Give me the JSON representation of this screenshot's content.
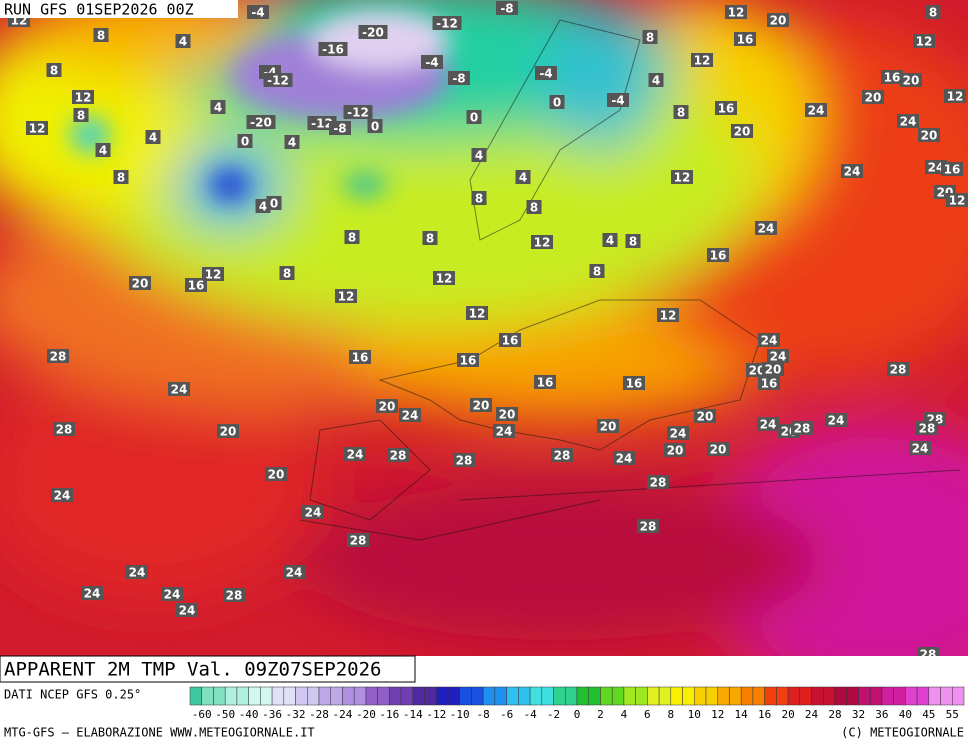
{
  "header": {
    "run": "RUN GFS 01SEP2026 00Z"
  },
  "map": {
    "title": "APPARENT 2M TMP Val. 09Z07SEP2026",
    "contour_labels": [
      -4,
      -8,
      -12,
      -20,
      -16,
      -4,
      -12,
      -4,
      -8,
      -4,
      0,
      -4,
      8,
      4,
      12,
      20,
      16,
      12,
      8,
      12,
      16,
      20,
      20,
      12,
      16,
      24,
      20,
      24,
      20,
      8,
      0,
      -12,
      -20,
      -12,
      -8,
      0,
      0,
      4,
      4,
      4,
      4,
      12,
      12,
      8,
      8,
      8,
      4,
      12,
      4,
      4,
      12,
      24,
      24,
      16,
      20,
      12,
      8,
      4,
      0,
      8,
      8,
      12,
      4,
      8,
      8,
      8,
      24,
      16,
      12,
      16,
      20,
      8,
      12,
      8,
      12,
      12,
      12,
      16,
      24,
      24,
      28,
      16,
      16,
      20,
      20,
      16,
      16,
      16,
      28,
      24,
      20,
      24,
      20,
      20,
      20,
      24,
      20,
      24,
      24,
      20,
      28,
      24,
      28,
      28,
      24,
      28,
      20,
      24,
      28,
      28,
      28,
      24,
      20,
      20,
      20,
      24,
      28,
      24,
      28,
      28,
      24,
      24,
      24,
      24,
      28,
      24,
      28
    ]
  },
  "footer": {
    "source": "DATI NCEP GFS 0.25°",
    "credit": "MTG-GFS — ELABORAZIONE WWW.METEOGIORNALE.IT",
    "copyright": "(C) METEOGIORNALE",
    "scale": [
      -60,
      -50,
      -40,
      -36,
      -32,
      -28,
      -24,
      -20,
      -16,
      -14,
      -12,
      -10,
      -8,
      -6,
      -4,
      -2,
      0,
      2,
      4,
      6,
      8,
      10,
      12,
      14,
      16,
      20,
      24,
      28,
      32,
      36,
      40,
      45,
      55
    ]
  }
}
